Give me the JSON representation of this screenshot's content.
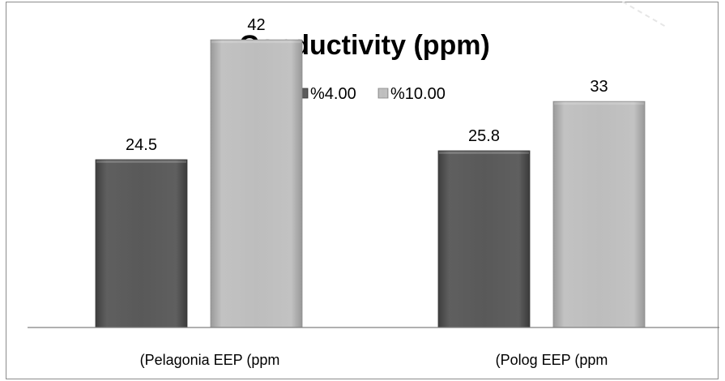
{
  "colors": {
    "series_dark": "#5a5a5a",
    "series_light": "#bdbdbd",
    "axis": "#808080",
    "frame": "#8c8c8c"
  },
  "chart_data": {
    "type": "bar",
    "title": "Conductivity (ppm)",
    "categories": [
      "(Pelagonia EEP (ppm",
      "(Polog EEP (ppm"
    ],
    "series": [
      {
        "name": "%4.00",
        "values": [
          24.5,
          25.8
        ],
        "labels": [
          "24.5",
          "25.8"
        ]
      },
      {
        "name": "%10.00",
        "values": [
          42,
          33
        ],
        "labels": [
          "42",
          "33"
        ]
      }
    ],
    "ylim": [
      0,
      50
    ],
    "grid": false,
    "legend_position": "top"
  }
}
